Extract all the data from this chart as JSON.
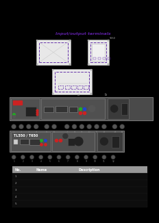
{
  "bg_color": "#000000",
  "title_text": "Input/output terminals",
  "title_color": "#5b1fa0",
  "title_fontsize": 4.5,
  "diagram_bg": "#e8e8e8",
  "diagram_border": "#aaaaaa",
  "diagram_dashed_color": "#6633aa",
  "panel_dark": "#4a4a4a",
  "panel_mid": "#5a5a5a",
  "panel_light": "#666666",
  "panel_border": "#888888",
  "device_label": "TL550 / T650",
  "device_label_color": "#ffffff",
  "table_header_bg": "#999999",
  "table_header_color": "#ffffff",
  "table_text_color": "#aaaaaa",
  "table_headers": [
    "No.",
    "Name",
    "Description"
  ],
  "num_rows": 5,
  "port_red": "#cc2222",
  "port_green": "#22aa22",
  "port_blue": "#2244cc",
  "port_gray": "#888888",
  "port_dark": "#333333"
}
